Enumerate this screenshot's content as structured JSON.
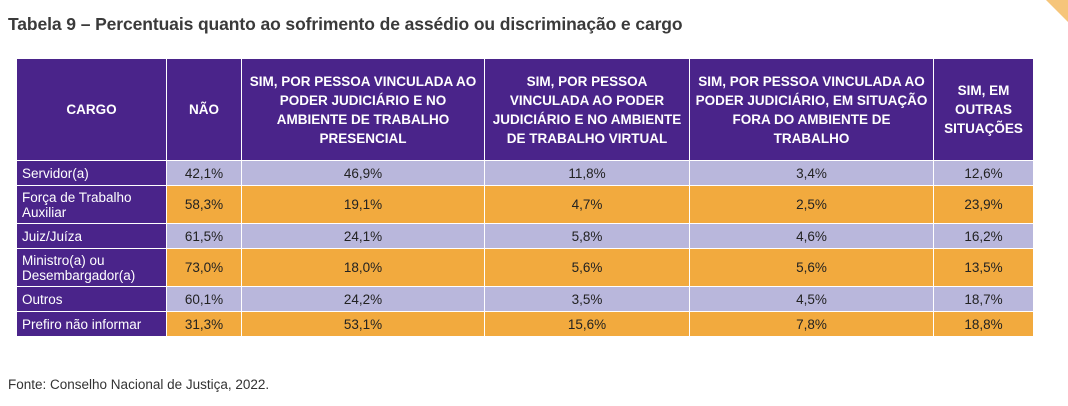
{
  "title": "Tabela 9 – Percentuais quanto ao sofrimento de assédio ou discriminação e cargo",
  "headers": [
    "CARGO",
    "NÃO",
    "SIM, POR PESSOA VINCULADA AO PODER JUDICIÁRIO E NO AMBIENTE DE TRABALHO PRESENCIAL",
    "SIM, POR PESSOA VINCULADA AO PODER JUDICIÁRIO E NO AMBIENTE DE TRABALHO VIRTUAL",
    "SIM, POR PESSOA VINCULADA AO PODER JUDICIÁRIO, EM SITUAÇÃO FORA DO AMBIENTE DE TRABALHO",
    "SIM, EM OUTRAS SITUAÇÕES"
  ],
  "rows": [
    {
      "cargo": "Servidor(a)",
      "values": [
        "42,1%",
        "46,9%",
        "11,8%",
        "3,4%",
        "12,6%"
      ]
    },
    {
      "cargo": "Força de Trabalho Auxiliar",
      "values": [
        "58,3%",
        "19,1%",
        "4,7%",
        "2,5%",
        "23,9%"
      ]
    },
    {
      "cargo": "Juiz/Juíza",
      "values": [
        "61,5%",
        "24,1%",
        "5,8%",
        "4,6%",
        "16,2%"
      ]
    },
    {
      "cargo": "Ministro(a) ou Desembargador(a)",
      "values": [
        "73,0%",
        "18,0%",
        "5,6%",
        "5,6%",
        "13,5%"
      ]
    },
    {
      "cargo": "Outros",
      "values": [
        "60,1%",
        "24,2%",
        "3,5%",
        "4,5%",
        "18,7%"
      ]
    },
    {
      "cargo": "Prefiro não informar",
      "values": [
        "31,3%",
        "53,1%",
        "15,6%",
        "7,8%",
        "18,8%"
      ]
    }
  ],
  "source": "Fonte: Conselho Nacional de Justiça, 2022.",
  "colors": {
    "header_bg": "#4a248a",
    "row_odd_bg": "#b9b7dc",
    "row_even_bg": "#f2aa3e",
    "accent_corner": "#f6c57a"
  }
}
